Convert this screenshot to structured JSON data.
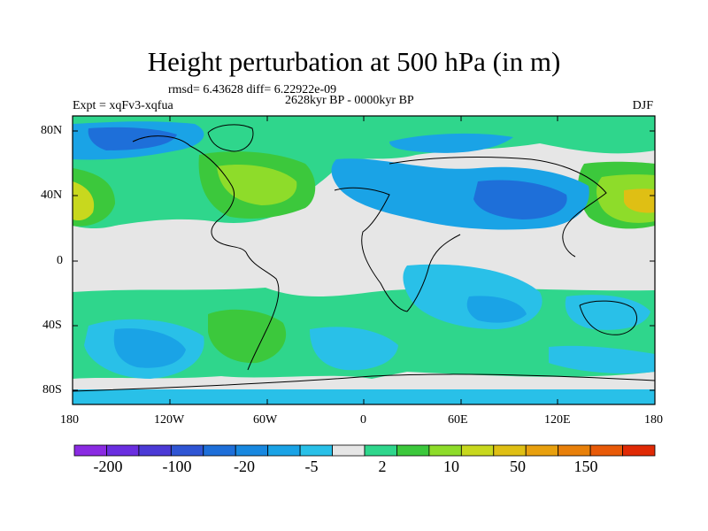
{
  "title": "Height perturbation at 500 hPa (in m)",
  "stats": "rmsd= 6.43628 diff= 6.22922e-09",
  "experiment": "Expt = xqFv3-xqfua",
  "period": "2628kyr BP - 0000kyr BP",
  "season": "DJF",
  "lat_labels": [
    "80N",
    "40N",
    "0",
    "40S",
    "80S"
  ],
  "lon_labels": [
    "180",
    "120W",
    "60W",
    "0",
    "60E",
    "120E",
    "180"
  ],
  "colorbar": {
    "colors": [
      "#8a2be2",
      "#6a2ee0",
      "#4b3ad6",
      "#2f55d4",
      "#1e6fd9",
      "#1888e0",
      "#1aa3e6",
      "#29c0e8",
      "#e6e6e6",
      "#2fd68c",
      "#3cc83c",
      "#8edc2a",
      "#c8d81e",
      "#dfbf14",
      "#e8a00e",
      "#e8800a",
      "#e85a08",
      "#e02a05"
    ],
    "labels": [
      "-200",
      "-100",
      "-20",
      "-5",
      "2",
      "10",
      "50",
      "150"
    ]
  },
  "field_colors": {
    "neutral": "#e6e6e6",
    "light_blue": "#29c0e8",
    "blue": "#1aa3e6",
    "dark_blue": "#1e6fd9",
    "teal_green": "#2fd68c",
    "green": "#3cc83c",
    "yellow_green": "#8edc2a",
    "yellow": "#c8d81e",
    "gold": "#dfbf14"
  }
}
